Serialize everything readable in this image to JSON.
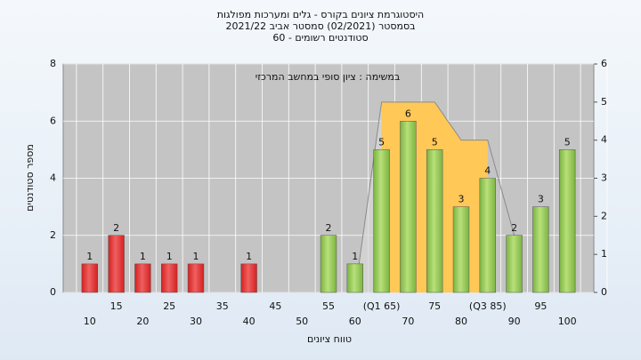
{
  "chart_data": {
    "type": "bar",
    "title": [
      "היסטוגרמת ציונים בקורס - גלים ומערכות מפולגות",
      "בסמסטר  (02/2021)  סמסטר אביב 2021/22",
      "סטודנטים רשומים - 60"
    ],
    "annotation": "במשימה : ציון סופי במחשב המרכזי",
    "x_label": "טווח ציונים",
    "y_label": "מספר סטודנטים",
    "categories": [
      "10",
      "15",
      "20",
      "25",
      "30",
      "35",
      "40",
      "45",
      "50",
      "55",
      "60",
      "(Q1 65)",
      "70",
      "75",
      "80",
      "(Q3 85)",
      "90",
      "95",
      "100"
    ],
    "values": [
      1,
      2,
      1,
      1,
      1,
      0,
      1,
      0,
      0,
      2,
      1,
      5,
      6,
      5,
      3,
      4,
      2,
      3,
      5
    ],
    "colors": [
      "#d42020",
      "#d42020",
      "#d42020",
      "#d42020",
      "#d42020",
      "#d42020",
      "#d42020",
      "#d42020",
      "#d42020",
      "#7cb342",
      "#7cb342",
      "#7cb342",
      "#7cb342",
      "#7cb342",
      "#7cb342",
      "#7cb342",
      "#7cb342",
      "#7cb342",
      "#7cb342"
    ],
    "ylim": [
      0,
      8
    ],
    "yticks": [
      0,
      2,
      4,
      6,
      8
    ],
    "y2lim": [
      0,
      6
    ],
    "y2ticks": [
      0,
      1,
      2,
      3,
      4,
      5,
      6
    ],
    "overlay": {
      "axis": "y2",
      "x": [
        60,
        65,
        75,
        80,
        85,
        90
      ],
      "values": [
        0,
        5,
        5,
        4,
        4,
        1.5
      ],
      "fill_from": 65,
      "fill_to": 85,
      "color": "#ffc857"
    },
    "grid": true
  }
}
